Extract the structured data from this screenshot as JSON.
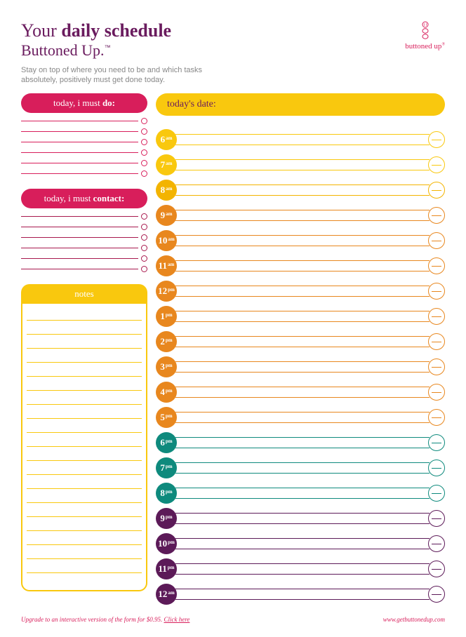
{
  "colors": {
    "purple": "#6a1b5e",
    "crimson": "#d81e5b",
    "yellow": "#f9c80e",
    "orange": "#e8871e",
    "darkorange": "#d6701a",
    "teal": "#0e8a7d",
    "darkpurple": "#5c1a58",
    "notetint": "#f9c80e",
    "grey": "#888888"
  },
  "header": {
    "title_prefix": "Your ",
    "title_bold": "daily schedule",
    "subtitle": "Buttoned Up.",
    "tm": "™",
    "logo_text": "buttoned up",
    "logo_color": "#d81e5b"
  },
  "intro": "Stay on top of where you need to be and which tasks absolutely, positively must get done today.",
  "date_pill": {
    "label": "today's date:",
    "bg": "#f9c80e",
    "text_color": "#6a1b5e"
  },
  "do_section": {
    "prefix": "today, i must ",
    "bold": "do:",
    "bg": "#d81e5b",
    "line_color": "#d81e5b",
    "line_count": 6
  },
  "contact_section": {
    "prefix": "today, i must ",
    "bold": "contact:",
    "bg": "#d81e5b",
    "line_color": "#a8184d",
    "line_count": 6
  },
  "notes": {
    "label": "notes",
    "bg": "#f9c80e",
    "border": "#f9c80e",
    "line_color": "#f9c80e",
    "line_count": 20
  },
  "hours": [
    {
      "h": "6",
      "ap": "am",
      "color": "#f9c80e"
    },
    {
      "h": "7",
      "ap": "am",
      "color": "#f9c80e"
    },
    {
      "h": "8",
      "ap": "am",
      "color": "#f3b400"
    },
    {
      "h": "9",
      "ap": "am",
      "color": "#e8871e"
    },
    {
      "h": "10",
      "ap": "am",
      "color": "#e8871e"
    },
    {
      "h": "11",
      "ap": "am",
      "color": "#e8871e"
    },
    {
      "h": "12",
      "ap": "pm",
      "color": "#e8871e"
    },
    {
      "h": "1",
      "ap": "pm",
      "color": "#e8871e"
    },
    {
      "h": "2",
      "ap": "pm",
      "color": "#e8871e"
    },
    {
      "h": "3",
      "ap": "pm",
      "color": "#e8871e"
    },
    {
      "h": "4",
      "ap": "pm",
      "color": "#e8871e"
    },
    {
      "h": "5",
      "ap": "pm",
      "color": "#e8871e"
    },
    {
      "h": "6",
      "ap": "pm",
      "color": "#0e8a7d"
    },
    {
      "h": "7",
      "ap": "pm",
      "color": "#0e8a7d"
    },
    {
      "h": "8",
      "ap": "pm",
      "color": "#0e8a7d"
    },
    {
      "h": "9",
      "ap": "pm",
      "color": "#5c1a58"
    },
    {
      "h": "10",
      "ap": "pm",
      "color": "#5c1a58"
    },
    {
      "h": "11",
      "ap": "pm",
      "color": "#5c1a58"
    },
    {
      "h": "12",
      "ap": "am",
      "color": "#5c1a58"
    }
  ],
  "footer": {
    "left_prefix": "Upgrade to an interactive version of the form for $0.95. ",
    "left_link": "Click here",
    "right": "www.getbuttonedup.com",
    "color": "#d81e5b"
  }
}
